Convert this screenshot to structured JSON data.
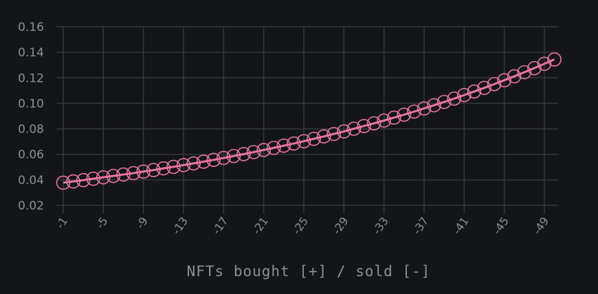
{
  "chart_data": {
    "type": "line",
    "title": "",
    "xlabel": "NFTs bought [+] / sold [-]",
    "ylabel": "",
    "xlim": [
      -1,
      -49
    ],
    "ylim": [
      0.02,
      0.16
    ],
    "grid": true,
    "x_ticks": [
      "-1",
      "-5",
      "-9",
      "-13",
      "-17",
      "-21",
      "-25",
      "-29",
      "-33",
      "-37",
      "-41",
      "-45",
      "-49"
    ],
    "y_ticks": [
      "0.02",
      "0.04",
      "0.06",
      "0.08",
      "0.10",
      "0.12",
      "0.14",
      "0.16"
    ],
    "marker": "circle",
    "colors": {
      "series": "#e8779e",
      "grid": "#33383d",
      "text": "#8b8f96",
      "background": "#141519"
    },
    "x": [
      -1,
      -2,
      -3,
      -4,
      -5,
      -6,
      -7,
      -8,
      -9,
      -10,
      -11,
      -12,
      -13,
      -14,
      -15,
      -16,
      -17,
      -18,
      -19,
      -20,
      -21,
      -22,
      -23,
      -24,
      -25,
      -26,
      -27,
      -28,
      -29,
      -30,
      -31,
      -32,
      -33,
      -34,
      -35,
      -36,
      -37,
      -38,
      -39,
      -40,
      -41,
      -42,
      -43,
      -44,
      -45,
      -46,
      -47,
      -48,
      -49,
      -50
    ],
    "series": [
      {
        "values": [
          0.0378,
          0.0388,
          0.0398,
          0.0409,
          0.042,
          0.0431,
          0.0442,
          0.0453,
          0.0465,
          0.0477,
          0.049,
          0.0502,
          0.0516,
          0.0529,
          0.0543,
          0.0557,
          0.0572,
          0.0587,
          0.0602,
          0.0618,
          0.0634,
          0.0651,
          0.0668,
          0.0685,
          0.0703,
          0.0722,
          0.0741,
          0.076,
          0.078,
          0.0801,
          0.0822,
          0.0843,
          0.0865,
          0.0888,
          0.0911,
          0.0935,
          0.096,
          0.0985,
          0.1011,
          0.1037,
          0.1065,
          0.1093,
          0.1121,
          0.1151,
          0.1181,
          0.1212,
          0.1244,
          0.1276,
          0.131,
          0.1344
        ]
      }
    ]
  }
}
